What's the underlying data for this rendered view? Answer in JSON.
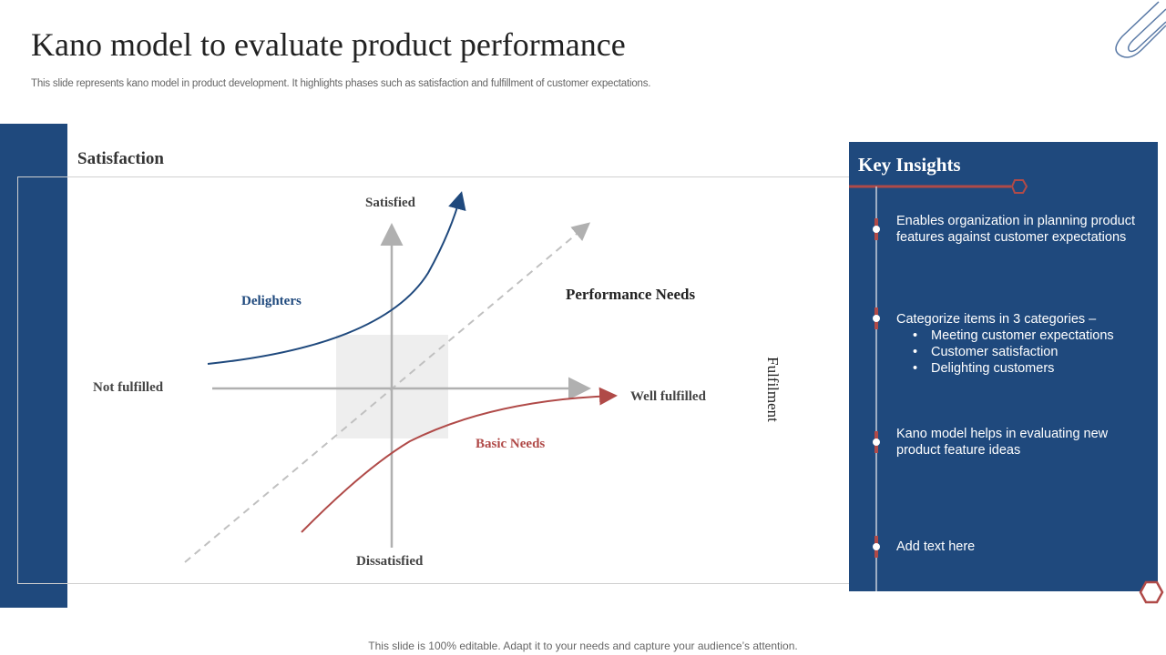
{
  "title": "Kano model to evaluate product performance",
  "subtitle": "This slide represents kano model in product development. It highlights phases such as satisfaction and fulfillment of customer expectations.",
  "diagram": {
    "y_axis_title": "Satisfaction",
    "x_axis_title": "Fulfilment",
    "top_label": "Satisfied",
    "bottom_label": "Dissatisfied",
    "left_label": "Not fulfilled",
    "right_label": "Well fulfilled",
    "delighters": "Delighters",
    "performance": "Performance Needs",
    "basic": "Basic Needs",
    "colors": {
      "delighters": "#1f497d",
      "basic": "#b04a48",
      "axis": "#b0b0b0"
    }
  },
  "insights": {
    "title": "Key Insights",
    "items": [
      {
        "text": "Enables organization in planning product features against customer expectations"
      },
      {
        "text": "Categorize items in 3 categories –",
        "bullets": [
          "Meeting customer expectations",
          "Customer satisfaction",
          "Delighting customers"
        ]
      },
      {
        "text": "Kano model helps in evaluating new product feature ideas"
      },
      {
        "text": "Add text here"
      }
    ]
  },
  "footer": "This slide is 100% editable. Adapt it to your needs and capture your audience’s attention.",
  "colors": {
    "brand": "#1f497d",
    "accent": "#b04a48"
  }
}
